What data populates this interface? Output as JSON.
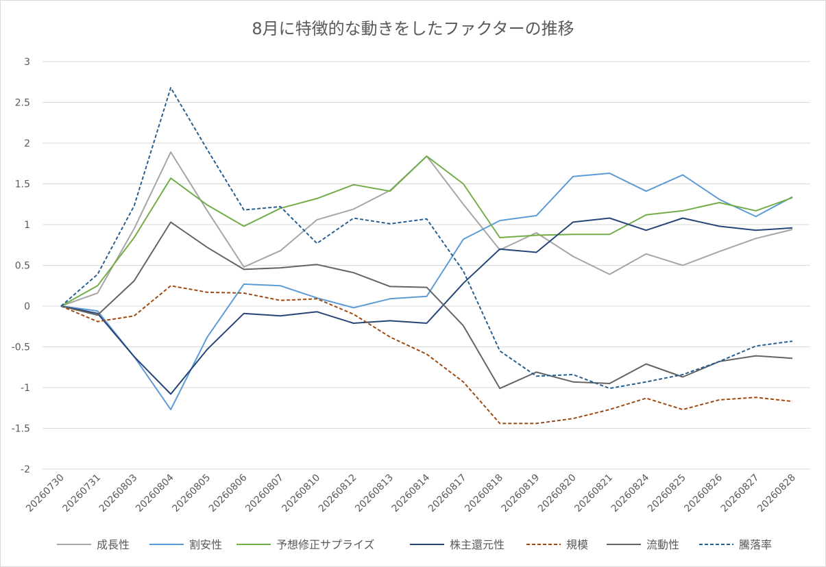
{
  "chart_data": {
    "type": "line",
    "title": "8月に特徴的な動きをしたファクターの推移",
    "categories": [
      "20260730",
      "20260731",
      "20260803",
      "20260804",
      "20260805",
      "20260806",
      "20260807",
      "20260810",
      "20260812",
      "20260813",
      "20260814",
      "20260817",
      "20260818",
      "20260819",
      "20260820",
      "20260821",
      "20260824",
      "20260825",
      "20260826",
      "20260827",
      "20260828"
    ],
    "ylim": [
      -2,
      3
    ],
    "yticks": [
      -2,
      -1.5,
      -1,
      -0.5,
      0,
      0.5,
      1,
      1.5,
      2,
      2.5,
      3
    ],
    "ytick_labels": [
      "-2",
      "-1.5",
      "-1",
      "-0.5",
      "0",
      "0.5",
      "1",
      "1.5",
      "2",
      "2.5",
      "3"
    ],
    "grid": true,
    "legend_position": "bottom",
    "series": [
      {
        "name": "成長性",
        "color": "#a5a5a5",
        "dashed": false,
        "values": [
          0,
          0.16,
          0.95,
          1.89,
          1.17,
          0.48,
          0.68,
          1.06,
          1.19,
          1.42,
          1.84,
          1.25,
          0.69,
          0.9,
          0.61,
          0.39,
          0.64,
          0.5,
          0.67,
          0.83,
          0.94
        ]
      },
      {
        "name": "割安性",
        "color": "#5b9bd5",
        "dashed": false,
        "values": [
          0,
          -0.06,
          -0.62,
          -1.27,
          -0.38,
          0.27,
          0.25,
          0.1,
          -0.02,
          0.09,
          0.12,
          0.82,
          1.05,
          1.11,
          1.59,
          1.63,
          1.41,
          1.61,
          1.31,
          1.1,
          1.34
        ]
      },
      {
        "name": "予想修正サプライズ",
        "color": "#70ad47",
        "dashed": false,
        "values": [
          0,
          0.25,
          0.84,
          1.57,
          1.24,
          0.98,
          1.2,
          1.32,
          1.49,
          1.41,
          1.84,
          1.5,
          0.84,
          0.87,
          0.88,
          0.88,
          1.12,
          1.17,
          1.27,
          1.17,
          1.33
        ]
      },
      {
        "name": "株主還元性",
        "color": "#264478",
        "dashed": false,
        "values": [
          0,
          -0.09,
          -0.62,
          -1.08,
          -0.53,
          -0.09,
          -0.12,
          -0.07,
          -0.21,
          -0.18,
          -0.21,
          0.28,
          0.7,
          0.66,
          1.03,
          1.08,
          0.93,
          1.08,
          0.98,
          0.93,
          0.96
        ]
      },
      {
        "name": "規模",
        "color": "#9e480e",
        "dashed": true,
        "values": [
          0,
          -0.19,
          -0.12,
          0.25,
          0.17,
          0.16,
          0.07,
          0.09,
          -0.1,
          -0.38,
          -0.59,
          -0.93,
          -1.44,
          -1.44,
          -1.38,
          -1.27,
          -1.13,
          -1.27,
          -1.15,
          -1.12,
          -1.17
        ]
      },
      {
        "name": "流動性",
        "color": "#636363",
        "dashed": false,
        "values": [
          0,
          -0.11,
          0.31,
          1.03,
          0.72,
          0.45,
          0.47,
          0.51,
          0.41,
          0.24,
          0.23,
          -0.24,
          -1.01,
          -0.81,
          -0.93,
          -0.95,
          -0.71,
          -0.87,
          -0.68,
          -0.61,
          -0.64
        ]
      },
      {
        "name": "騰落率",
        "color": "#255e91",
        "dashed": true,
        "values": [
          0,
          0.39,
          1.23,
          2.68,
          1.92,
          1.18,
          1.22,
          0.77,
          1.08,
          1.01,
          1.07,
          0.43,
          -0.55,
          -0.86,
          -0.84,
          -1.01,
          -0.93,
          -0.84,
          -0.68,
          -0.49,
          -0.43
        ]
      }
    ]
  }
}
